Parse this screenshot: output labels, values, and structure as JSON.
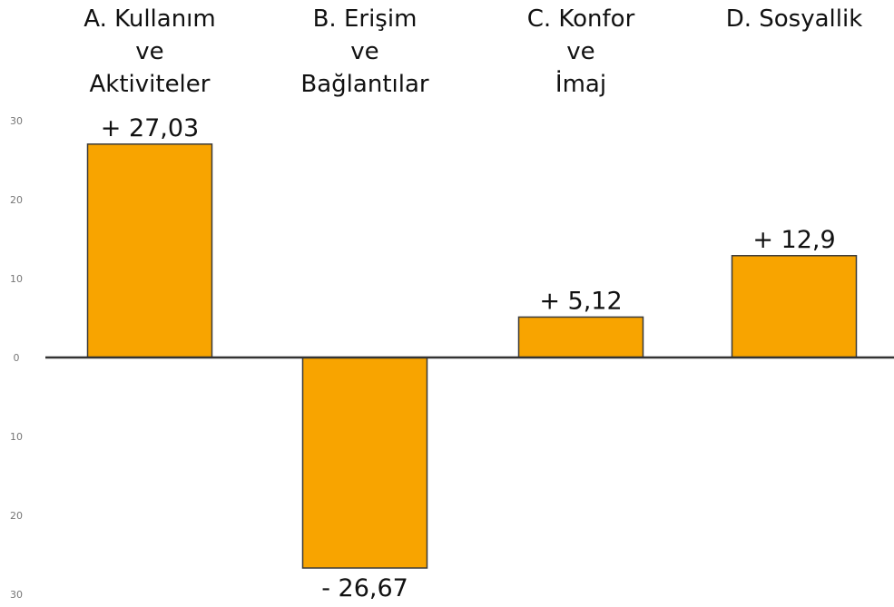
{
  "chart_data": {
    "type": "bar",
    "categories": [
      [
        "A. Kullanım",
        "ve",
        "Aktiviteler"
      ],
      [
        "B. Erişim",
        "ve",
        "Bağlantılar"
      ],
      [
        "C. Konfor",
        "ve",
        "İmaj"
      ],
      [
        "D. Sosyallik"
      ]
    ],
    "values": [
      27.03,
      -26.67,
      5.12,
      12.9
    ],
    "data_labels": [
      "+ 27,03",
      "- 26,67",
      "+ 5,12",
      "+ 12,9"
    ],
    "y_ticks": [
      "30",
      "20",
      "10",
      "0",
      "10",
      "20",
      "30"
    ],
    "ylim": [
      -30,
      30
    ],
    "grid": false,
    "legend": "none",
    "bar_color": "#f8a400",
    "bar_stroke": "#3a3a3a",
    "axis_color": "#333333"
  }
}
